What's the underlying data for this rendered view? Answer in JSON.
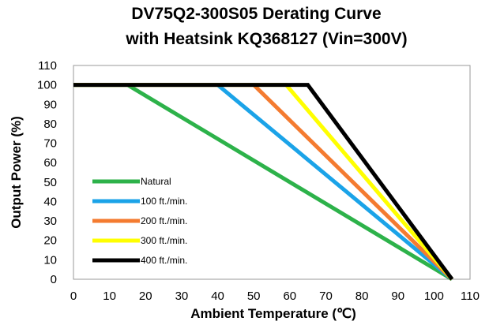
{
  "chart_data": {
    "type": "line",
    "title_line1": "DV75Q2-300S05 Derating Curve",
    "title_line2": "with Heatsink KQ368127 (Vin=300V)",
    "xlabel": "Ambient Temperature (℃)",
    "ylabel": "Output Power (%)",
    "xlim": [
      0,
      110
    ],
    "ylim": [
      0,
      110
    ],
    "xticks": [
      0,
      10,
      20,
      30,
      40,
      50,
      60,
      70,
      80,
      90,
      100,
      110
    ],
    "yticks": [
      0,
      10,
      20,
      30,
      40,
      50,
      60,
      70,
      80,
      90,
      100,
      110
    ],
    "grid": false,
    "legend_position": "bottom-left",
    "series": [
      {
        "name": "Natural",
        "color": "#2db24a",
        "points": [
          [
            0,
            100
          ],
          [
            15,
            100
          ],
          [
            105,
            0
          ]
        ]
      },
      {
        "name": "100 ft./min.",
        "color": "#1ba3e8",
        "points": [
          [
            0,
            100
          ],
          [
            40,
            100
          ],
          [
            105,
            0
          ]
        ]
      },
      {
        "name": "200 ft./min.",
        "color": "#f47b30",
        "points": [
          [
            0,
            100
          ],
          [
            50,
            100
          ],
          [
            105,
            0
          ]
        ]
      },
      {
        "name": "300 ft./min.",
        "color": "#ffff00",
        "points": [
          [
            0,
            100
          ],
          [
            59,
            100
          ],
          [
            105,
            0
          ]
        ]
      },
      {
        "name": "400 ft./min.",
        "color": "#000000",
        "points": [
          [
            0,
            100
          ],
          [
            65,
            100
          ],
          [
            105,
            0
          ]
        ]
      }
    ]
  }
}
